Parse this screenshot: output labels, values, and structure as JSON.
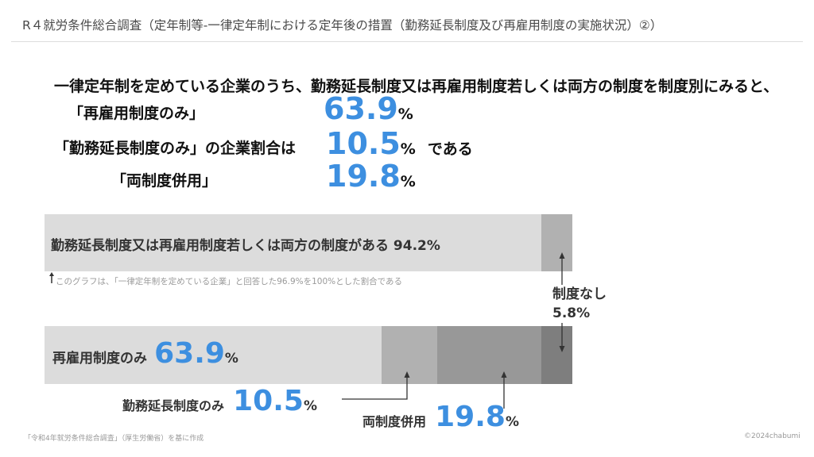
{
  "header": {
    "title": "R４就労条件総合調査（定年制等‐一律定年制における定年後の措置（勤務延長制度及び再雇用制度の実施状況）②）"
  },
  "summary": {
    "lead": "一律定年制を定めている企業のうち、勤務延長制度又は再雇用制度若しくは両方の制度を制度別にみると、",
    "items": [
      {
        "label": "「再雇用制度のみ」",
        "value": "63.9",
        "unit": "%"
      },
      {
        "label": "「勤務延長制度のみ」の企業割合は",
        "value": "10.5",
        "unit": "%",
        "suffix": "である"
      },
      {
        "label": "「両制度併用」",
        "value": "19.8",
        "unit": "%"
      }
    ]
  },
  "chart_data": {
    "type": "bar",
    "orientation": "horizontal-stacked",
    "unit": "%",
    "bars": [
      {
        "segments": [
          {
            "name": "勤務延長制度又は再雇用制度若しくは両方の制度がある",
            "value": 94.2,
            "color": "#dcdcdc"
          },
          {
            "name": "制度なし",
            "value": 5.8,
            "color": "#b1b1b1"
          }
        ]
      },
      {
        "segments": [
          {
            "name": "再雇用制度のみ",
            "value": 63.9,
            "color": "#dcdcdc"
          },
          {
            "name": "勤務延長制度のみ",
            "value": 10.5,
            "color": "#b1b1b1"
          },
          {
            "name": "両制度併用",
            "value": 19.8,
            "color": "#989898"
          },
          {
            "name": "制度なし",
            "value": 5.8,
            "color": "#7e7e7e"
          }
        ]
      }
    ],
    "labels": {
      "has_system": "勤務延長制度又は再雇用制度若しくは両方の制度がある 94.2%",
      "none": "制度なし",
      "none_value": "5.8%",
      "rehire_only": "再雇用制度のみ",
      "rehire_only_value": "63.9",
      "extension_only": "勤務延長制度のみ",
      "extension_only_value": "10.5",
      "both": "両制度併用",
      "both_value": "19.8",
      "unit": "%"
    },
    "note": "このグラフは、「一律定年制を定めている企業」と回答した96.9%を100%とした割合である"
  },
  "footer": {
    "source": "「令和4年就労条件総合調査」（厚生労働省）を基に作成",
    "copyright": "©2024chabumi"
  }
}
